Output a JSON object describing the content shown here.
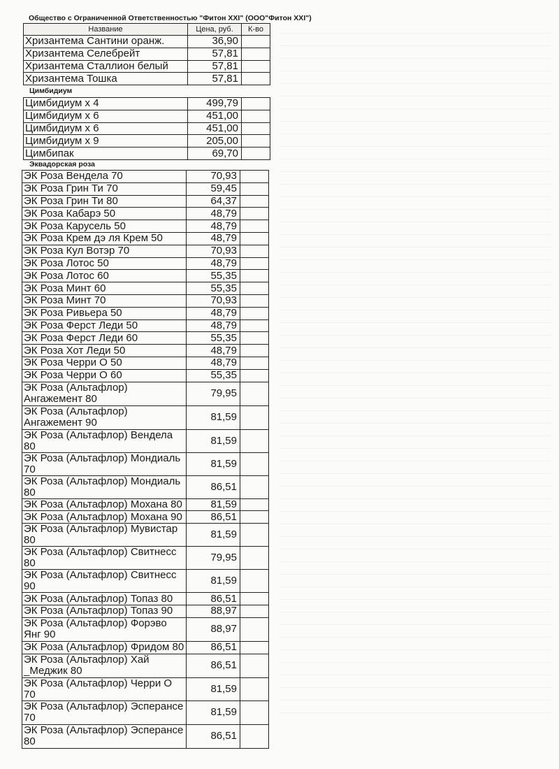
{
  "document": {
    "title": "Общество с Ограниченной Ответственностью \"Фитон XXI\" (ООО\"Фитон XXI\")",
    "headers": {
      "name": "Название",
      "price": "Цена, руб.",
      "qty": "К-во"
    },
    "sections": [
      {
        "label": "",
        "rows": [
          {
            "name": "Хризантема Сантини оранж.",
            "price": "36,90"
          },
          {
            "name": "Хризантема Селебрейт",
            "price": "57,81"
          },
          {
            "name": "Хризантема Сталлион белый",
            "price": "57,81"
          },
          {
            "name": "Хризантема Тошка",
            "price": "57,81"
          }
        ]
      },
      {
        "label": "Цимбидиум",
        "rows": [
          {
            "name": "Цимбидиум х 4",
            "price": "499,79"
          },
          {
            "name": "Цимбидиум х 6",
            "price": "451,00"
          },
          {
            "name": "Цимбидиум х 6",
            "price": "451,00"
          },
          {
            "name": "Цимбидиум х 9",
            "price": "205,00"
          },
          {
            "name": "Цимбипак",
            "price": "69,70"
          }
        ]
      },
      {
        "label": "Эквадорская роза",
        "rows": [
          {
            "name": "ЭК Роза  Вендела 70",
            "price": "70,93"
          },
          {
            "name": "ЭК Роза  Грин Ти 70",
            "price": "59,45"
          },
          {
            "name": "ЭК Роза  Грин Ти 80",
            "price": "64,37"
          },
          {
            "name": "ЭК Роза  Кабарэ 50",
            "price": "48,79"
          },
          {
            "name": "ЭК Роза  Карусель 50",
            "price": "48,79"
          },
          {
            "name": "ЭК Роза  Крем дэ ля Крем 50",
            "price": "48,79"
          },
          {
            "name": "ЭК Роза  Кул Вотэр  70",
            "price": "70,93"
          },
          {
            "name": "ЭК Роза  Лотос 50",
            "price": "48,79"
          },
          {
            "name": "ЭК Роза  Лотос 60",
            "price": "55,35"
          },
          {
            "name": "ЭК Роза  Минт 60",
            "price": "55,35"
          },
          {
            "name": "ЭК Роза  Минт 70",
            "price": "70,93"
          },
          {
            "name": "ЭК Роза  Ривьера 50",
            "price": "48,79"
          },
          {
            "name": "ЭК Роза  Ферст Леди 50",
            "price": "48,79"
          },
          {
            "name": "ЭК Роза  Ферст Леди 60",
            "price": "55,35"
          },
          {
            "name": "ЭК Роза  Хот Леди 50",
            "price": "48,79"
          },
          {
            "name": "ЭК Роза  Черри О 50",
            "price": "48,79"
          },
          {
            "name": "ЭК Роза  Черри О 60",
            "price": "55,35"
          },
          {
            "name": "ЭК Роза (Альтафлор) Ангажемент 80",
            "price": "79,95",
            "wrap": true
          },
          {
            "name": "ЭК Роза (Альтафлор) Ангажемент 90",
            "price": "81,59",
            "wrap": true
          },
          {
            "name": "ЭК Роза (Альтафлор) Вендела 80",
            "price": "81,59"
          },
          {
            "name": "ЭК Роза (Альтафлор) Мондиаль 70",
            "price": "81,59"
          },
          {
            "name": "ЭК Роза (Альтафлор) Мондиаль 80",
            "price": "86,51"
          },
          {
            "name": "ЭК Роза (Альтафлор) Мохана 80",
            "price": "81,59"
          },
          {
            "name": "ЭК Роза (Альтафлор) Мохана 90",
            "price": "86,51"
          },
          {
            "name": "ЭК Роза (Альтафлор) Мувистар 80",
            "price": "81,59"
          },
          {
            "name": "ЭК Роза (Альтафлор) Свитнесс 80",
            "price": "79,95"
          },
          {
            "name": "ЭК Роза (Альтафлор) Свитнесс 90",
            "price": "81,59"
          },
          {
            "name": "ЭК Роза (Альтафлор) Топаз 80",
            "price": "86,51"
          },
          {
            "name": "ЭК Роза (Альтафлор) Топаз 90",
            "price": "88,97"
          },
          {
            "name": "ЭК Роза (Альтафлор) Форэво Янг 90",
            "price": "88,97",
            "wrap": true
          },
          {
            "name": "ЭК Роза (Альтафлор) Фридом 80",
            "price": "86,51"
          },
          {
            "name": "ЭК Роза (Альтафлор) Хай _Меджик 80",
            "price": "86,51",
            "wrap": true
          },
          {
            "name": "ЭК Роза (Альтафлор) Черри О 70",
            "price": "81,59"
          },
          {
            "name": "ЭК Роза (Альтафлор) Эсперансе 70",
            "price": "81,59",
            "wrap": true
          },
          {
            "name": "ЭК Роза (Альтафлор) Эсперансе 80",
            "price": "86,51",
            "wrap": true
          }
        ]
      }
    ]
  }
}
